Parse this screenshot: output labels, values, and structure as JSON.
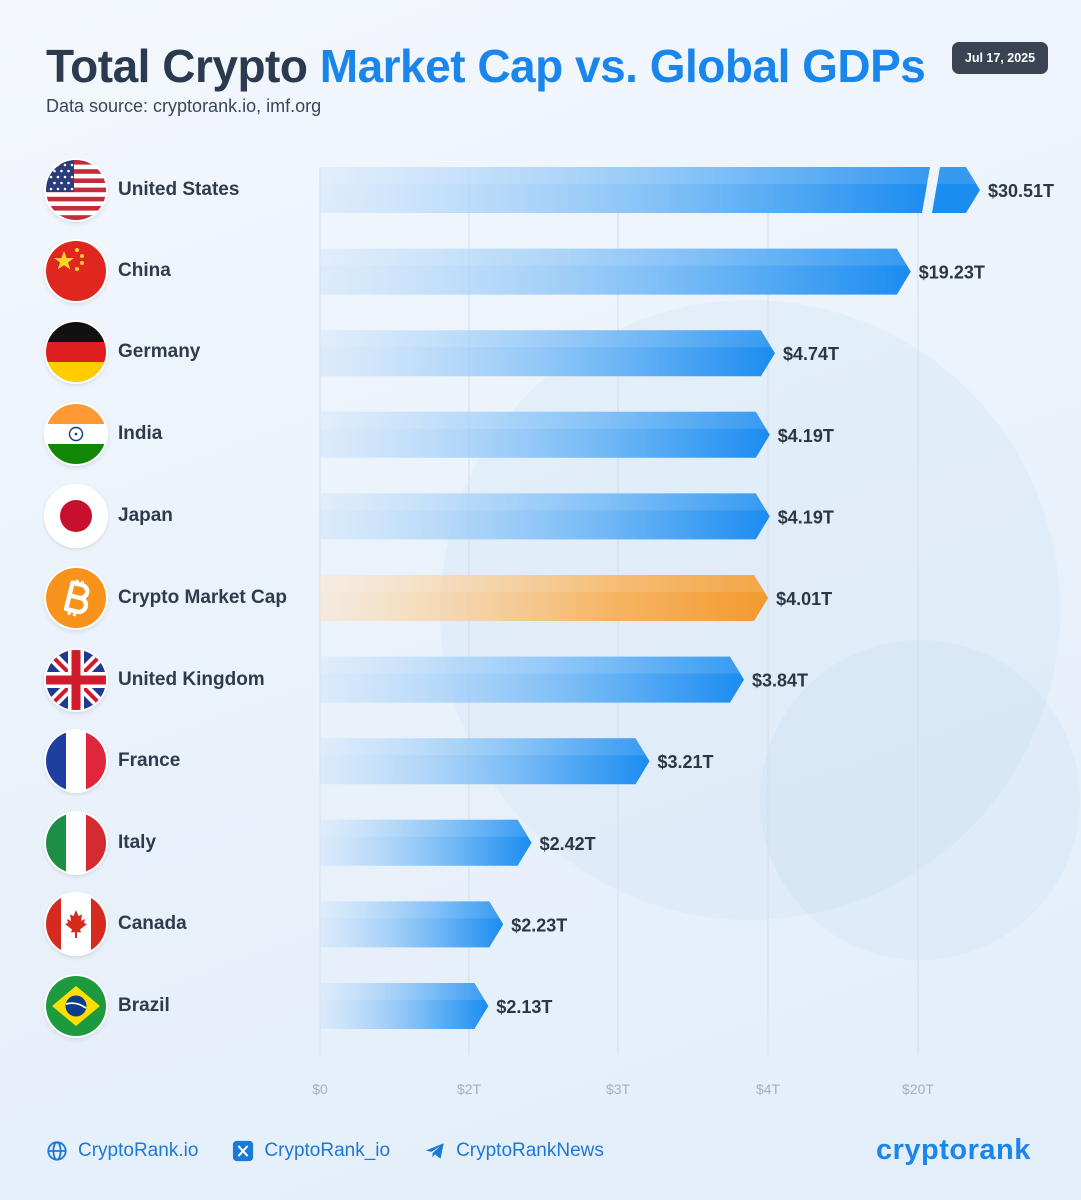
{
  "title": {
    "part_dark": "Total Crypto",
    "part_blue": "Market Cap vs. Global GDPs"
  },
  "subtitle": "Data source: cryptorank.io, imf.org",
  "date": "Jul 17, 2025",
  "colors": {
    "bar_blue": "#1b8cf0",
    "bar_orange": "#f29a2e",
    "title_blue": "#1a86ec",
    "title_dark": "#2c3a4f"
  },
  "chart_data": {
    "type": "bar",
    "orientation": "horizontal",
    "scale": "broken",
    "categories": [
      "United States",
      "China",
      "Germany",
      "India",
      "Japan",
      "Crypto Market Cap",
      "United Kingdom",
      "France",
      "Italy",
      "Canada",
      "Brazil"
    ],
    "icons": [
      "us-flag-icon",
      "china-flag-icon",
      "germany-flag-icon",
      "india-flag-icon",
      "japan-flag-icon",
      "bitcoin-icon",
      "uk-flag-icon",
      "france-flag-icon",
      "italy-flag-icon",
      "canada-flag-icon",
      "brazil-flag-icon"
    ],
    "values": [
      30.51,
      19.23,
      4.74,
      4.19,
      4.19,
      4.01,
      3.84,
      3.21,
      2.42,
      2.23,
      2.13
    ],
    "value_labels": [
      "$30.51T",
      "$19.23T",
      "$4.74T",
      "$4.19T",
      "$4.19T",
      "$4.01T",
      "$3.84T",
      "$3.21T",
      "$2.42T",
      "$2.23T",
      "$2.13T"
    ],
    "highlight": "Crypto Market Cap",
    "axis_ticks": [
      "$0",
      "$2T",
      "$3T",
      "$4T",
      "$20T"
    ],
    "axis_tick_values": [
      0,
      2,
      3,
      4,
      20
    ],
    "xlabel": "",
    "ylabel": "",
    "grid": true
  },
  "footer": {
    "website": "CryptoRank.io",
    "x_handle": "CryptoRank_io",
    "telegram": "CryptoRankNews",
    "brand": "cryptorank"
  }
}
